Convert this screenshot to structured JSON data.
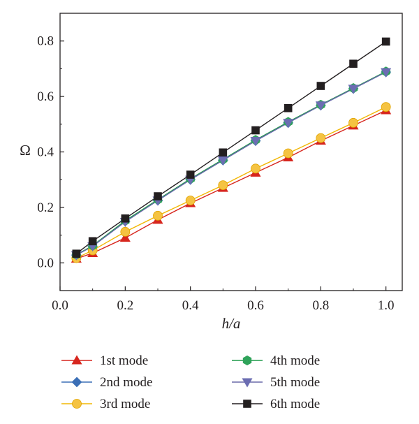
{
  "chart_data": {
    "type": "line",
    "title": "",
    "xlabel": "h/a",
    "ylabel": "Ω",
    "xlim": [
      0.0,
      1.05
    ],
    "ylim": [
      -0.1,
      0.9
    ],
    "xticks": [
      "0.0",
      "0.2",
      "0.4",
      "0.6",
      "0.8",
      "1.0"
    ],
    "yticks": [
      "0.0",
      "0.2",
      "0.4",
      "0.6",
      "0.8"
    ],
    "grid": false,
    "legend_position": "bottom",
    "x": [
      0.05,
      0.1,
      0.2,
      0.3,
      0.4,
      0.5,
      0.6,
      0.7,
      0.8,
      0.9,
      1.0
    ],
    "series": [
      {
        "name": "1st mode",
        "marker": "triangle-up",
        "line_color": "#d7261e",
        "marker_color": "#d7261e",
        "values": [
          0.015,
          0.035,
          0.09,
          0.155,
          0.215,
          0.27,
          0.325,
          0.38,
          0.44,
          0.495,
          0.55
        ]
      },
      {
        "name": "2nd mode",
        "marker": "diamond",
        "line_color": "#3b6fb6",
        "marker_color": "#3b6fb6",
        "values": [
          0.028,
          0.06,
          0.15,
          0.225,
          0.3,
          0.37,
          0.44,
          0.505,
          0.568,
          0.628,
          0.688
        ]
      },
      {
        "name": "3rd mode",
        "marker": "circle",
        "line_color": "#f2b705",
        "marker_color": "#f5c342",
        "values": [
          0.017,
          0.045,
          0.112,
          0.17,
          0.225,
          0.28,
          0.34,
          0.395,
          0.45,
          0.505,
          0.562
        ]
      },
      {
        "name": "4th mode",
        "marker": "hexagon",
        "line_color": "#1f9a4a",
        "marker_color": "#2fa35a",
        "values": [
          0.029,
          0.062,
          0.152,
          0.228,
          0.303,
          0.373,
          0.443,
          0.508,
          0.57,
          0.63,
          0.69
        ]
      },
      {
        "name": "5th mode",
        "marker": "triangle-down",
        "line_color": "#6a6aa8",
        "marker_color": "#6b6db2",
        "values": [
          0.028,
          0.06,
          0.148,
          0.225,
          0.3,
          0.37,
          0.44,
          0.505,
          0.568,
          0.628,
          0.688
        ]
      },
      {
        "name": "6th mode",
        "marker": "square",
        "line_color": "#231f20",
        "marker_color": "#231f20",
        "values": [
          0.033,
          0.078,
          0.16,
          0.24,
          0.318,
          0.398,
          0.478,
          0.558,
          0.638,
          0.718,
          0.798
        ]
      }
    ]
  }
}
